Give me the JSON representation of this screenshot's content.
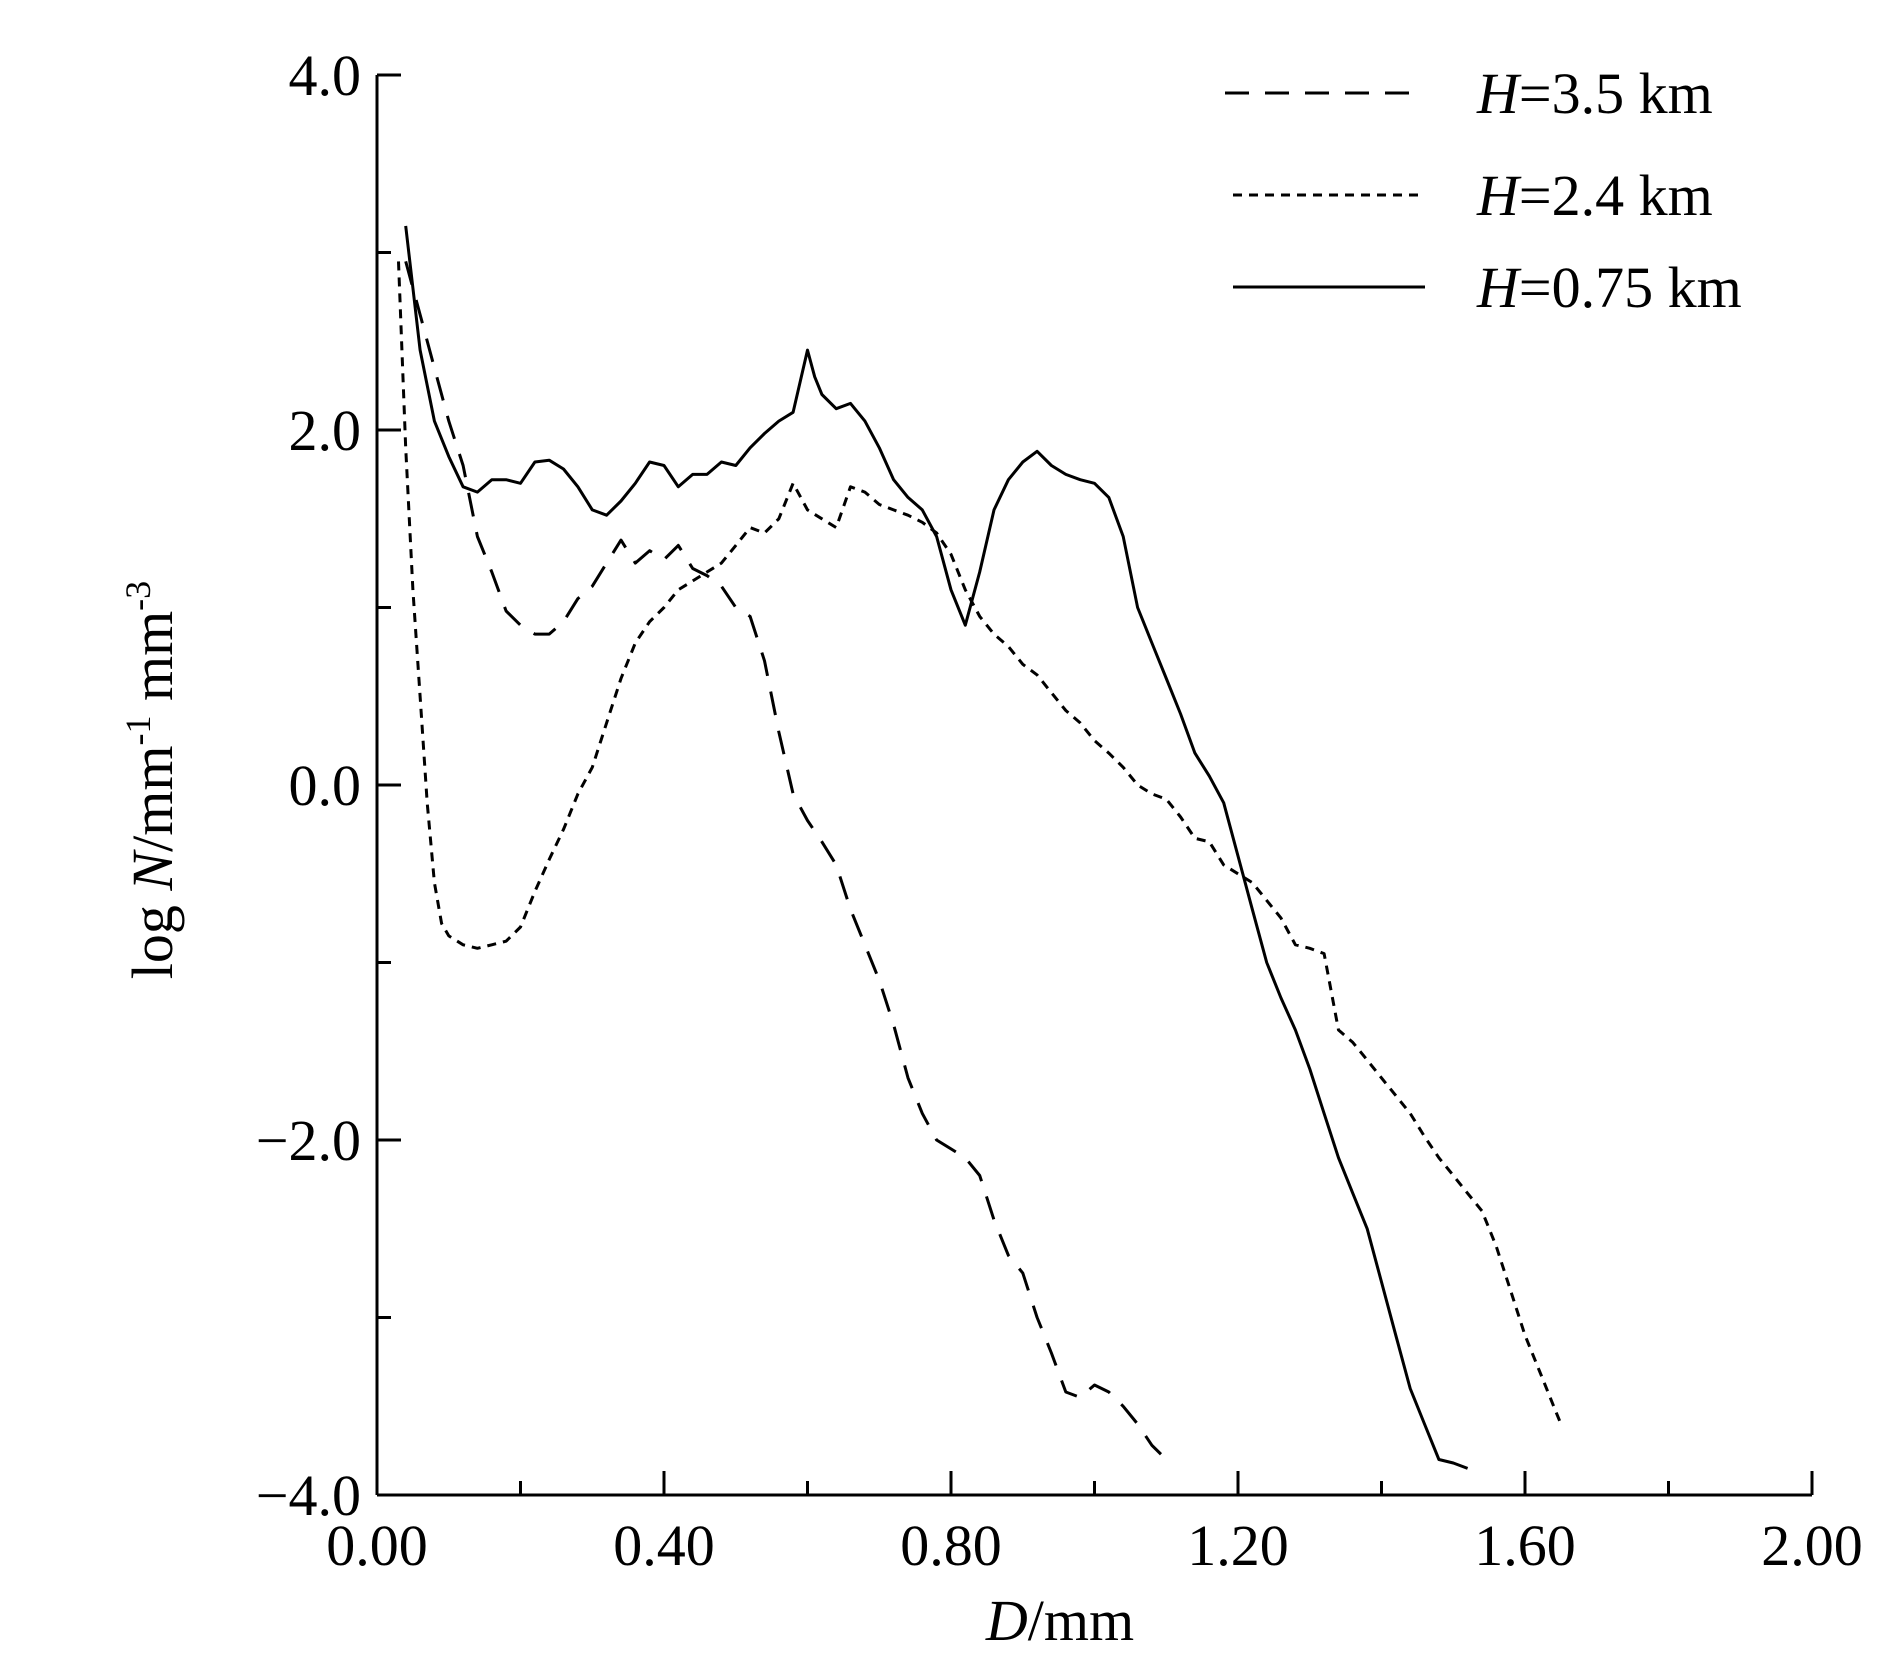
{
  "chart_data": {
    "type": "line",
    "xlabel": {
      "var": "D",
      "unit": "/mm"
    },
    "ylabel": {
      "prefix": "log ",
      "var": "N",
      "unit_a": "/mm",
      "sup_a": "-1",
      "unit_b": " mm",
      "sup_b": "-3"
    },
    "xlim": [
      0,
      2.0
    ],
    "ylim": [
      -4.0,
      4.0
    ],
    "x_ticks": [
      "0.00",
      "0.40",
      "0.80",
      "1.20",
      "1.60",
      "2.00"
    ],
    "x_tick_values": [
      0,
      0.4,
      0.8,
      1.2,
      1.6,
      2.0
    ],
    "x_minor_ticks": [
      0.2,
      0.6,
      1.0,
      1.4,
      1.8
    ],
    "y_ticks": [
      "4.0",
      "2.0",
      "0.0",
      "−2.0",
      "−4.0"
    ],
    "y_tick_values": [
      4.0,
      2.0,
      0.0,
      -2.0,
      -4.0
    ],
    "y_minor_ticks": [
      3.0,
      1.0,
      -1.0,
      -3.0
    ],
    "grid": false,
    "legend_position": "top-right",
    "series": [
      {
        "name": "H=3.5 km",
        "name_var": "H",
        "name_rest": "=3.5 km",
        "style": "dashed",
        "x": [
          0.04,
          0.06,
          0.08,
          0.1,
          0.12,
          0.14,
          0.16,
          0.18,
          0.2,
          0.22,
          0.24,
          0.26,
          0.28,
          0.3,
          0.32,
          0.34,
          0.36,
          0.38,
          0.4,
          0.42,
          0.44,
          0.46,
          0.48,
          0.5,
          0.52,
          0.54,
          0.56,
          0.58,
          0.6,
          0.62,
          0.64,
          0.66,
          0.68,
          0.7,
          0.72,
          0.74,
          0.76,
          0.78,
          0.8,
          0.82,
          0.84,
          0.86,
          0.88,
          0.9,
          0.92,
          0.94,
          0.96,
          0.98,
          1.0,
          1.02,
          1.04,
          1.06,
          1.08,
          1.1
        ],
        "y": [
          2.95,
          2.65,
          2.35,
          2.05,
          1.8,
          1.4,
          1.2,
          0.98,
          0.9,
          0.85,
          0.85,
          0.92,
          1.05,
          1.12,
          1.25,
          1.38,
          1.25,
          1.32,
          1.27,
          1.35,
          1.22,
          1.18,
          1.12,
          1.0,
          0.95,
          0.7,
          0.3,
          -0.05,
          -0.2,
          -0.32,
          -0.45,
          -0.7,
          -0.9,
          -1.1,
          -1.35,
          -1.65,
          -1.85,
          -2.0,
          -2.05,
          -2.1,
          -2.2,
          -2.45,
          -2.65,
          -2.75,
          -3.0,
          -3.2,
          -3.42,
          -3.45,
          -3.38,
          -3.42,
          -3.5,
          -3.6,
          -3.72,
          -3.8
        ]
      },
      {
        "name": "H=2.4 km",
        "name_var": "H",
        "name_rest": "=2.4 km",
        "style": "dotted",
        "x": [
          0.03,
          0.04,
          0.05,
          0.06,
          0.07,
          0.08,
          0.09,
          0.1,
          0.12,
          0.14,
          0.16,
          0.18,
          0.2,
          0.22,
          0.24,
          0.26,
          0.28,
          0.3,
          0.32,
          0.34,
          0.36,
          0.38,
          0.4,
          0.42,
          0.44,
          0.46,
          0.48,
          0.5,
          0.52,
          0.54,
          0.56,
          0.58,
          0.6,
          0.62,
          0.64,
          0.66,
          0.68,
          0.7,
          0.72,
          0.74,
          0.76,
          0.78,
          0.8,
          0.82,
          0.84,
          0.86,
          0.88,
          0.9,
          0.92,
          0.94,
          0.96,
          0.98,
          1.0,
          1.02,
          1.04,
          1.06,
          1.08,
          1.1,
          1.12,
          1.14,
          1.16,
          1.18,
          1.2,
          1.22,
          1.24,
          1.26,
          1.28,
          1.3,
          1.32,
          1.34,
          1.36,
          1.38,
          1.4,
          1.42,
          1.44,
          1.46,
          1.48,
          1.5,
          1.52,
          1.54,
          1.56,
          1.58,
          1.6,
          1.62,
          1.64,
          1.65
        ],
        "y": [
          2.95,
          1.9,
          1.1,
          0.5,
          -0.1,
          -0.55,
          -0.78,
          -0.85,
          -0.9,
          -0.92,
          -0.9,
          -0.88,
          -0.8,
          -0.6,
          -0.42,
          -0.25,
          -0.05,
          0.1,
          0.35,
          0.6,
          0.8,
          0.92,
          1.0,
          1.1,
          1.15,
          1.2,
          1.25,
          1.35,
          1.45,
          1.42,
          1.5,
          1.7,
          1.55,
          1.5,
          1.45,
          1.68,
          1.65,
          1.58,
          1.55,
          1.52,
          1.48,
          1.42,
          1.3,
          1.1,
          0.95,
          0.85,
          0.78,
          0.68,
          0.62,
          0.52,
          0.42,
          0.35,
          0.25,
          0.18,
          0.1,
          0.0,
          -0.05,
          -0.08,
          -0.18,
          -0.3,
          -0.32,
          -0.45,
          -0.5,
          -0.55,
          -0.65,
          -0.75,
          -0.9,
          -0.92,
          -0.95,
          -1.38,
          -1.45,
          -1.55,
          -1.65,
          -1.75,
          -1.85,
          -1.98,
          -2.1,
          -2.2,
          -2.3,
          -2.4,
          -2.6,
          -2.85,
          -3.1,
          -3.3,
          -3.5,
          -3.6
        ]
      },
      {
        "name": "H=0.75 km",
        "name_var": "H",
        "name_rest": "=0.75 km",
        "style": "solid",
        "x": [
          0.04,
          0.05,
          0.06,
          0.08,
          0.1,
          0.12,
          0.14,
          0.16,
          0.18,
          0.2,
          0.22,
          0.24,
          0.26,
          0.28,
          0.3,
          0.32,
          0.34,
          0.36,
          0.38,
          0.4,
          0.42,
          0.44,
          0.46,
          0.48,
          0.5,
          0.52,
          0.54,
          0.56,
          0.58,
          0.6,
          0.61,
          0.62,
          0.64,
          0.66,
          0.68,
          0.7,
          0.72,
          0.74,
          0.76,
          0.78,
          0.8,
          0.82,
          0.84,
          0.86,
          0.88,
          0.9,
          0.92,
          0.94,
          0.96,
          0.98,
          1.0,
          1.02,
          1.04,
          1.06,
          1.08,
          1.1,
          1.12,
          1.14,
          1.16,
          1.18,
          1.2,
          1.22,
          1.24,
          1.26,
          1.28,
          1.3,
          1.32,
          1.34,
          1.36,
          1.38,
          1.4,
          1.42,
          1.44,
          1.46,
          1.48,
          1.5,
          1.52
        ],
        "y": [
          3.15,
          2.8,
          2.45,
          2.05,
          1.85,
          1.68,
          1.65,
          1.72,
          1.72,
          1.7,
          1.82,
          1.83,
          1.78,
          1.68,
          1.55,
          1.52,
          1.6,
          1.7,
          1.82,
          1.8,
          1.68,
          1.75,
          1.75,
          1.82,
          1.8,
          1.9,
          1.98,
          2.05,
          2.1,
          2.45,
          2.3,
          2.2,
          2.12,
          2.15,
          2.05,
          1.9,
          1.72,
          1.62,
          1.55,
          1.4,
          1.1,
          0.9,
          1.2,
          1.55,
          1.72,
          1.82,
          1.88,
          1.8,
          1.75,
          1.72,
          1.7,
          1.62,
          1.4,
          1.0,
          0.8,
          0.6,
          0.4,
          0.18,
          0.05,
          -0.1,
          -0.4,
          -0.7,
          -1.0,
          -1.2,
          -1.38,
          -1.6,
          -1.85,
          -2.1,
          -2.3,
          -2.5,
          -2.8,
          -3.1,
          -3.4,
          -3.6,
          -3.8,
          -3.82,
          -3.85
        ]
      }
    ]
  }
}
